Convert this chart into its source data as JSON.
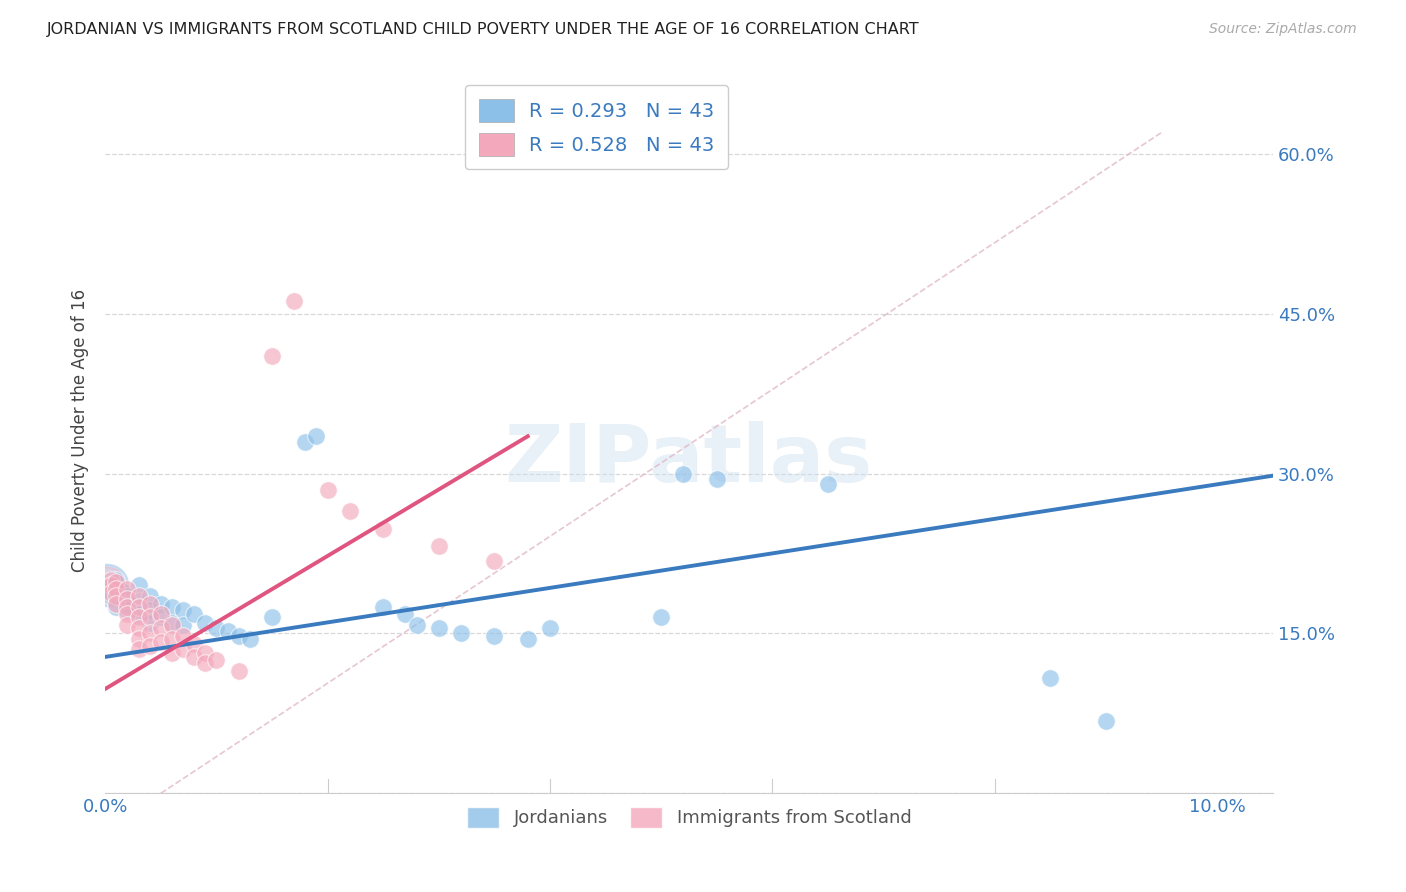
{
  "title": "JORDANIAN VS IMMIGRANTS FROM SCOTLAND CHILD POVERTY UNDER THE AGE OF 16 CORRELATION CHART",
  "source": "Source: ZipAtlas.com",
  "ylabel": "Child Poverty Under the Age of 16",
  "legend_bottom": [
    "Jordanians",
    "Immigrants from Scotland"
  ],
  "R_jordanians": 0.293,
  "R_scotland": 0.528,
  "N_jordanians": 43,
  "N_scotland": 43,
  "blue_color": "#8cc0e8",
  "pink_color": "#f4a8bc",
  "blue_line_color": "#3a7abf",
  "pink_line_color": "#e05580",
  "blue_scatter": [
    [
      0.0005,
      0.195
    ],
    [
      0.0005,
      0.185
    ],
    [
      0.001,
      0.2
    ],
    [
      0.001,
      0.175
    ],
    [
      0.0015,
      0.19
    ],
    [
      0.002,
      0.185
    ],
    [
      0.002,
      0.178
    ],
    [
      0.002,
      0.172
    ],
    [
      0.003,
      0.195
    ],
    [
      0.003,
      0.18
    ],
    [
      0.003,
      0.168
    ],
    [
      0.004,
      0.185
    ],
    [
      0.004,
      0.172
    ],
    [
      0.004,
      0.16
    ],
    [
      0.005,
      0.178
    ],
    [
      0.005,
      0.165
    ],
    [
      0.006,
      0.175
    ],
    [
      0.006,
      0.16
    ],
    [
      0.007,
      0.172
    ],
    [
      0.007,
      0.158
    ],
    [
      0.008,
      0.168
    ],
    [
      0.009,
      0.16
    ],
    [
      0.01,
      0.155
    ],
    [
      0.011,
      0.152
    ],
    [
      0.012,
      0.148
    ],
    [
      0.013,
      0.145
    ],
    [
      0.015,
      0.165
    ],
    [
      0.018,
      0.33
    ],
    [
      0.019,
      0.335
    ],
    [
      0.025,
      0.175
    ],
    [
      0.027,
      0.168
    ],
    [
      0.028,
      0.158
    ],
    [
      0.03,
      0.155
    ],
    [
      0.032,
      0.15
    ],
    [
      0.035,
      0.148
    ],
    [
      0.038,
      0.145
    ],
    [
      0.04,
      0.155
    ],
    [
      0.05,
      0.165
    ],
    [
      0.052,
      0.3
    ],
    [
      0.055,
      0.295
    ],
    [
      0.065,
      0.29
    ],
    [
      0.085,
      0.108
    ],
    [
      0.09,
      0.068
    ]
  ],
  "pink_scatter": [
    [
      0.0005,
      0.2
    ],
    [
      0.0005,
      0.195
    ],
    [
      0.0005,
      0.188
    ],
    [
      0.001,
      0.198
    ],
    [
      0.001,
      0.192
    ],
    [
      0.001,
      0.185
    ],
    [
      0.001,
      0.178
    ],
    [
      0.002,
      0.192
    ],
    [
      0.002,
      0.182
    ],
    [
      0.002,
      0.175
    ],
    [
      0.002,
      0.168
    ],
    [
      0.002,
      0.158
    ],
    [
      0.003,
      0.185
    ],
    [
      0.003,
      0.175
    ],
    [
      0.003,
      0.165
    ],
    [
      0.003,
      0.155
    ],
    [
      0.003,
      0.145
    ],
    [
      0.003,
      0.135
    ],
    [
      0.004,
      0.178
    ],
    [
      0.004,
      0.165
    ],
    [
      0.004,
      0.15
    ],
    [
      0.004,
      0.138
    ],
    [
      0.005,
      0.168
    ],
    [
      0.005,
      0.155
    ],
    [
      0.005,
      0.142
    ],
    [
      0.006,
      0.158
    ],
    [
      0.006,
      0.145
    ],
    [
      0.006,
      0.132
    ],
    [
      0.007,
      0.148
    ],
    [
      0.007,
      0.135
    ],
    [
      0.008,
      0.14
    ],
    [
      0.008,
      0.128
    ],
    [
      0.009,
      0.132
    ],
    [
      0.009,
      0.122
    ],
    [
      0.01,
      0.125
    ],
    [
      0.012,
      0.115
    ],
    [
      0.015,
      0.41
    ],
    [
      0.017,
      0.462
    ],
    [
      0.02,
      0.285
    ],
    [
      0.022,
      0.265
    ],
    [
      0.025,
      0.248
    ],
    [
      0.03,
      0.232
    ],
    [
      0.035,
      0.218
    ]
  ],
  "xlim": [
    0.0,
    0.105
  ],
  "ylim": [
    0.0,
    0.68
  ],
  "y_ticks": [
    0.0,
    0.15,
    0.3,
    0.45,
    0.6
  ],
  "background_color": "#ffffff",
  "grid_color": "#d8d8d8",
  "ref_line_color": "#e0b0c0",
  "watermark": "ZIPatlas"
}
